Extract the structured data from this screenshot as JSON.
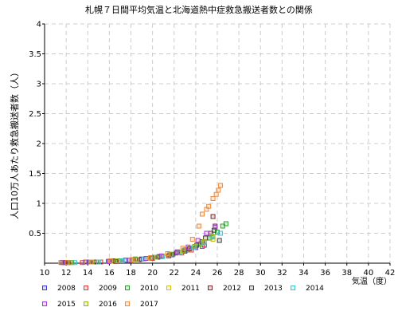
{
  "chart_data": {
    "type": "scatter",
    "title": "札幌７日間平均気温と北海道熱中症救急搬送者数との関係",
    "xlabel": "気温（度）",
    "ylabel": "人口10万人あたり救急搬送者数（人）",
    "xlim": [
      10,
      42
    ],
    "ylim": [
      0,
      4
    ],
    "xticks": [
      10,
      12,
      14,
      16,
      18,
      20,
      22,
      24,
      26,
      28,
      30,
      32,
      34,
      36,
      38,
      40,
      42
    ],
    "yticks": [
      0.5,
      1,
      1.5,
      2,
      2.5,
      3,
      3.5,
      4
    ],
    "ytick_labels": [
      "0.5",
      "1",
      "1.5",
      "2",
      "2.5",
      "3",
      "3.5",
      "4"
    ],
    "grid": true,
    "legend": "bottom",
    "series": [
      {
        "name": "2008",
        "color": "#3b3bd6",
        "points": [
          [
            12.0,
            0.01
          ],
          [
            14.1,
            0.02
          ],
          [
            16.0,
            0.03
          ],
          [
            17.5,
            0.05
          ],
          [
            19.0,
            0.07
          ],
          [
            20.5,
            0.1
          ],
          [
            21.8,
            0.14
          ],
          [
            23.0,
            0.2
          ],
          [
            24.0,
            0.26
          ],
          [
            24.8,
            0.3
          ]
        ]
      },
      {
        "name": "2009",
        "color": "#e23b3b",
        "points": [
          [
            11.8,
            0.01
          ],
          [
            13.5,
            0.01
          ],
          [
            15.2,
            0.02
          ],
          [
            17.0,
            0.04
          ],
          [
            18.6,
            0.06
          ],
          [
            20.0,
            0.08
          ],
          [
            21.5,
            0.12
          ],
          [
            22.7,
            0.17
          ],
          [
            23.6,
            0.22
          ],
          [
            24.6,
            0.28
          ]
        ]
      },
      {
        "name": "2010",
        "color": "#2aa02a",
        "points": [
          [
            12.5,
            0.01
          ],
          [
            14.8,
            0.02
          ],
          [
            16.9,
            0.04
          ],
          [
            18.4,
            0.07
          ],
          [
            20.2,
            0.1
          ],
          [
            21.9,
            0.15
          ],
          [
            23.2,
            0.22
          ],
          [
            24.4,
            0.32
          ],
          [
            25.3,
            0.42
          ],
          [
            26.0,
            0.52
          ],
          [
            26.5,
            0.62
          ],
          [
            26.8,
            0.66
          ]
        ]
      },
      {
        "name": "2011",
        "color": "#d4c21a",
        "points": [
          [
            11.5,
            0.01
          ],
          [
            13.9,
            0.02
          ],
          [
            16.2,
            0.03
          ],
          [
            18.0,
            0.05
          ],
          [
            19.6,
            0.08
          ],
          [
            21.0,
            0.12
          ],
          [
            22.4,
            0.18
          ],
          [
            23.5,
            0.25
          ],
          [
            24.5,
            0.33
          ],
          [
            25.6,
            0.4
          ]
        ]
      },
      {
        "name": "2012",
        "color": "#7a2a2a",
        "points": [
          [
            12.2,
            0.01
          ],
          [
            14.6,
            0.02
          ],
          [
            16.6,
            0.03
          ],
          [
            18.8,
            0.06
          ],
          [
            20.6,
            0.11
          ],
          [
            22.2,
            0.17
          ],
          [
            23.4,
            0.24
          ],
          [
            24.6,
            0.36
          ],
          [
            25.4,
            0.5
          ],
          [
            25.8,
            0.62
          ],
          [
            25.6,
            0.78
          ]
        ]
      },
      {
        "name": "2013",
        "color": "#444444",
        "points": [
          [
            11.9,
            0.01
          ],
          [
            14.2,
            0.02
          ],
          [
            16.4,
            0.04
          ],
          [
            18.2,
            0.06
          ],
          [
            19.9,
            0.09
          ],
          [
            21.6,
            0.14
          ],
          [
            23.0,
            0.22
          ],
          [
            24.1,
            0.3
          ],
          [
            24.9,
            0.42
          ],
          [
            25.7,
            0.55
          ],
          [
            26.2,
            0.38
          ]
        ]
      },
      {
        "name": "2014",
        "color": "#3ec6c6",
        "points": [
          [
            12.8,
            0.01
          ],
          [
            15.0,
            0.02
          ],
          [
            17.2,
            0.04
          ],
          [
            19.2,
            0.07
          ],
          [
            20.9,
            0.11
          ],
          [
            22.5,
            0.18
          ],
          [
            23.8,
            0.26
          ],
          [
            24.7,
            0.35
          ],
          [
            25.5,
            0.45
          ],
          [
            26.3,
            0.5
          ]
        ]
      },
      {
        "name": "2015",
        "color": "#a63bd6",
        "points": [
          [
            11.6,
            0.01
          ],
          [
            13.8,
            0.02
          ],
          [
            15.9,
            0.03
          ],
          [
            17.8,
            0.05
          ],
          [
            19.4,
            0.08
          ],
          [
            20.8,
            0.12
          ],
          [
            22.3,
            0.19
          ],
          [
            23.3,
            0.27
          ],
          [
            24.2,
            0.38
          ],
          [
            25.0,
            0.5
          ],
          [
            25.8,
            0.6
          ]
        ]
      },
      {
        "name": "2016",
        "color": "#9ab21a",
        "points": [
          [
            12.4,
            0.01
          ],
          [
            14.4,
            0.02
          ],
          [
            16.7,
            0.04
          ],
          [
            18.5,
            0.06
          ],
          [
            20.3,
            0.1
          ],
          [
            21.7,
            0.15
          ],
          [
            22.9,
            0.21
          ],
          [
            23.9,
            0.28
          ],
          [
            24.8,
            0.36
          ],
          [
            25.6,
            0.44
          ]
        ]
      },
      {
        "name": "2017",
        "color": "#f08a3a",
        "points": [
          [
            12.1,
            0.01
          ],
          [
            14.3,
            0.02
          ],
          [
            16.1,
            0.04
          ],
          [
            18.1,
            0.06
          ],
          [
            19.8,
            0.09
          ],
          [
            21.4,
            0.16
          ],
          [
            22.8,
            0.25
          ],
          [
            23.7,
            0.4
          ],
          [
            24.3,
            0.62
          ],
          [
            24.6,
            0.82
          ],
          [
            25.0,
            0.9
          ],
          [
            25.2,
            0.95
          ],
          [
            25.6,
            1.08
          ],
          [
            25.9,
            1.15
          ],
          [
            26.1,
            1.22
          ],
          [
            26.3,
            1.3
          ]
        ]
      }
    ]
  }
}
